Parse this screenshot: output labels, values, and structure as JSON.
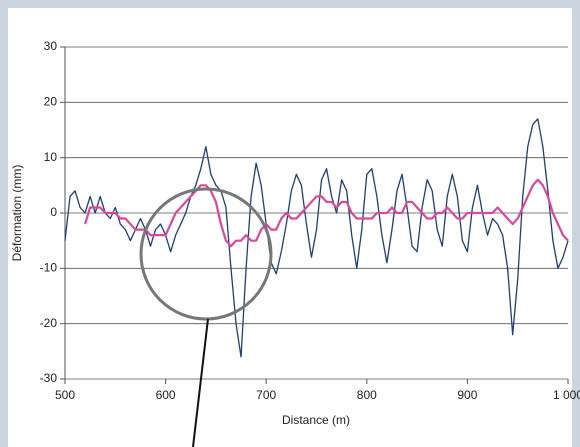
{
  "chart_data": {
    "type": "line",
    "xlabel": "Distance (m)",
    "ylabel": "Déformation (mm)",
    "x": [
      500,
      505,
      510,
      515,
      520,
      525,
      530,
      535,
      540,
      545,
      550,
      555,
      560,
      565,
      570,
      575,
      580,
      585,
      590,
      595,
      600,
      605,
      610,
      615,
      620,
      625,
      630,
      635,
      640,
      645,
      650,
      655,
      660,
      665,
      670,
      675,
      680,
      685,
      690,
      695,
      700,
      705,
      710,
      715,
      720,
      725,
      730,
      735,
      740,
      745,
      750,
      755,
      760,
      765,
      770,
      775,
      780,
      785,
      790,
      795,
      800,
      805,
      810,
      815,
      820,
      825,
      830,
      835,
      840,
      845,
      850,
      855,
      860,
      865,
      870,
      875,
      880,
      885,
      890,
      895,
      900,
      905,
      910,
      915,
      920,
      925,
      930,
      935,
      940,
      945,
      950,
      955,
      960,
      965,
      970,
      975,
      980,
      985,
      990,
      995,
      1000
    ],
    "series": [
      {
        "color": "#1f3f73",
        "values": [
          -5,
          3,
          4,
          1,
          0,
          3,
          0,
          3,
          0,
          -1,
          1,
          -2,
          -3,
          -5,
          -3,
          -1,
          -3,
          -6,
          -3,
          -2,
          -4,
          -7,
          -4,
          -2,
          0,
          3,
          5,
          8,
          12,
          7,
          5,
          4,
          1,
          -10,
          -20,
          -26,
          -10,
          3,
          9,
          5,
          -2,
          -9,
          -11,
          -7,
          -2,
          4,
          7,
          5,
          -2,
          -8,
          -3,
          6,
          8,
          3,
          0,
          6,
          4,
          -4,
          -10,
          -3,
          7,
          8,
          3,
          -4,
          -9,
          -3,
          4,
          7,
          1,
          -6,
          -7,
          1,
          6,
          4,
          -3,
          -6,
          3,
          7,
          3,
          -5,
          -7,
          1,
          5,
          0,
          -4,
          -1,
          -2,
          -4,
          -10,
          -22,
          -12,
          3,
          12,
          16,
          17,
          12,
          4,
          -5,
          -10,
          -8,
          -5
        ]
      },
      {
        "color": "#d9489a",
        "values": [
          null,
          null,
          null,
          null,
          -2,
          1,
          1,
          1,
          0,
          0,
          0,
          -1,
          -1,
          -2,
          -3,
          -3,
          -3,
          -4,
          -4,
          -4,
          -4,
          -2,
          0,
          1,
          2,
          3,
          4,
          5,
          5,
          4,
          2,
          -2,
          -5,
          -6,
          -5,
          -5,
          -4,
          -5,
          -5,
          -3,
          -2,
          -3,
          -3,
          -1,
          0,
          -1,
          -1,
          0,
          1,
          2,
          3,
          3,
          2,
          2,
          1,
          2,
          2,
          0,
          -1,
          -1,
          -1,
          -1,
          0,
          0,
          0,
          1,
          0,
          0,
          2,
          2,
          1,
          0,
          -1,
          -1,
          0,
          0,
          1,
          0,
          -1,
          -1,
          0,
          0,
          0,
          0,
          0,
          0,
          1,
          0,
          -1,
          -2,
          -1,
          1,
          3,
          5,
          6,
          5,
          3,
          0,
          -2,
          -4,
          -5
        ]
      }
    ],
    "xlim": [
      500,
      1000
    ],
    "xticks": [
      500,
      600,
      700,
      800,
      900,
      {
        "value": 1000,
        "label": "1 000"
      }
    ],
    "ylim": [
      -30,
      30
    ],
    "yticks": [
      -30,
      -20,
      -10,
      0,
      10,
      20,
      30
    ],
    "grid": true
  }
}
